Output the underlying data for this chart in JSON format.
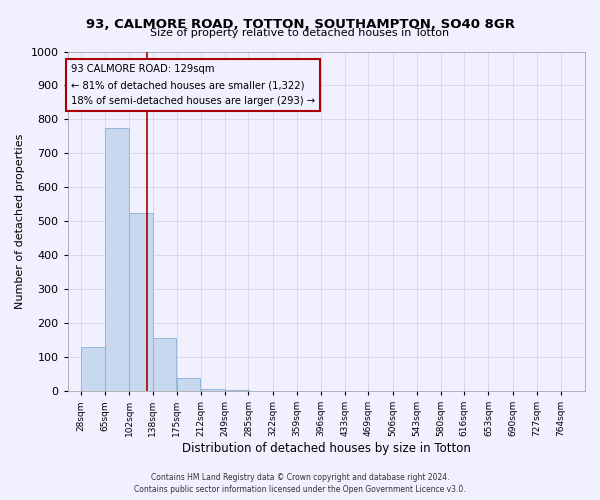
{
  "title": "93, CALMORE ROAD, TOTTON, SOUTHAMPTON, SO40 8GR",
  "subtitle": "Size of property relative to detached houses in Totton",
  "bar_values": [
    130,
    775,
    525,
    155,
    38,
    5,
    2,
    0,
    0,
    0,
    0,
    0,
    0,
    0,
    0,
    0,
    0,
    0,
    0,
    0
  ],
  "bin_edges": [
    28,
    65,
    102,
    138,
    175,
    212,
    249,
    285,
    322,
    359,
    396,
    433,
    469,
    506,
    543,
    580,
    616,
    653,
    690,
    727,
    764
  ],
  "tick_labels": [
    "28sqm",
    "65sqm",
    "102sqm",
    "138sqm",
    "175sqm",
    "212sqm",
    "249sqm",
    "285sqm",
    "322sqm",
    "359sqm",
    "396sqm",
    "433sqm",
    "469sqm",
    "506sqm",
    "543sqm",
    "580sqm",
    "616sqm",
    "653sqm",
    "690sqm",
    "727sqm",
    "764sqm"
  ],
  "bar_color": "#c8d8ee",
  "bar_edge_color": "#8ab0d4",
  "bar_linewidth": 0.6,
  "red_line_x": 129,
  "ylabel": "Number of detached properties",
  "xlabel": "Distribution of detached houses by size in Totton",
  "ylim": [
    0,
    1000
  ],
  "yticks": [
    0,
    100,
    200,
    300,
    400,
    500,
    600,
    700,
    800,
    900,
    1000
  ],
  "annotation_title": "93 CALMORE ROAD: 129sqm",
  "annotation_line1": "← 81% of detached houses are smaller (1,322)",
  "annotation_line2": "18% of semi-detached houses are larger (293) →",
  "annotation_box_color": "#aa0000",
  "footer_line1": "Contains HM Land Registry data © Crown copyright and database right 2024.",
  "footer_line2": "Contains public sector information licensed under the Open Government Licence v3.0.",
  "bg_color": "#f0f0ff",
  "grid_color": "#d0d0e0"
}
